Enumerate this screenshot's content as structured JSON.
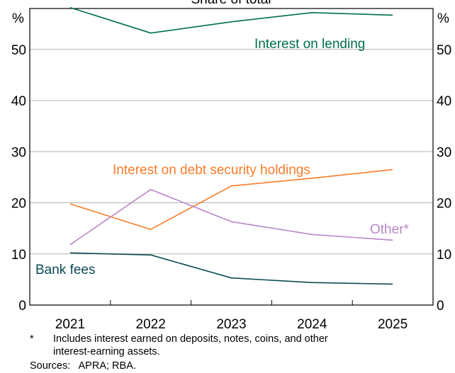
{
  "chart_data": {
    "type": "line",
    "subtitle": "Share of total",
    "left_unit": "%",
    "right_unit": "%",
    "x": [
      "2021",
      "2022",
      "2023",
      "2024",
      "2025"
    ],
    "ylim": [
      0,
      58
    ],
    "yticks": [
      0,
      10,
      20,
      30,
      40,
      50
    ],
    "grid": true,
    "series": [
      {
        "name": "Interest on lending",
        "color": "#00704a",
        "values": [
          58.2,
          53.2,
          55.4,
          57.2,
          56.7
        ]
      },
      {
        "name": "Interest on debt security holdings",
        "color": "#f97b2a",
        "values": [
          19.8,
          14.8,
          23.3,
          24.8,
          26.5
        ]
      },
      {
        "name": "Other*",
        "color": "#b887c8",
        "values": [
          11.8,
          22.6,
          16.3,
          13.8,
          12.7
        ]
      },
      {
        "name": "Bank fees",
        "color": "#0b4a55",
        "values": [
          10.2,
          9.8,
          5.3,
          4.4,
          4.1
        ]
      }
    ]
  },
  "footnotes": {
    "star_marker": "*",
    "star_line1": "Includes interest earned on deposits, notes, coins, and other",
    "star_line2": "interest-earning assets.",
    "sources": "Sources:   APRA; RBA."
  }
}
